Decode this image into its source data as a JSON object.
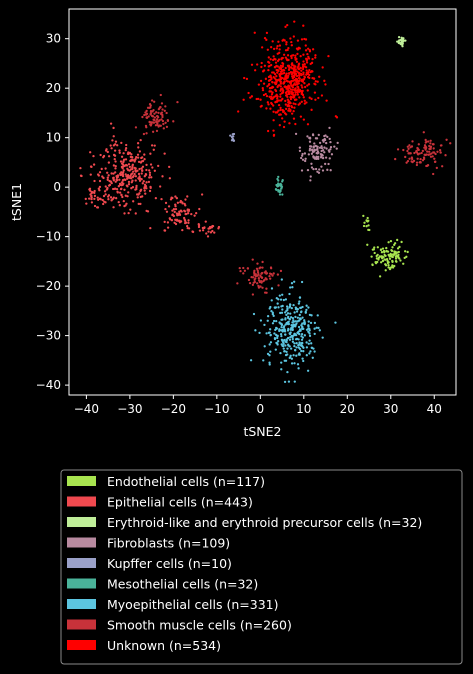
{
  "chart_data": {
    "type": "scatter",
    "title": "",
    "xlabel": "tSNE2",
    "ylabel": "tSNE1",
    "xlim": [
      -44,
      45
    ],
    "ylim": [
      -42,
      36
    ],
    "xticks": [
      -40,
      -30,
      -20,
      -10,
      0,
      10,
      20,
      30,
      40
    ],
    "yticks": [
      -40,
      -30,
      -20,
      -10,
      0,
      10,
      20,
      30
    ],
    "grid": false,
    "legend_position": "below plot",
    "background_color": "#000000",
    "series": [
      {
        "name": "Endothelial cells (n=117)",
        "color": "#a8e44f",
        "n": 117,
        "clusters": [
          {
            "cx": 29.5,
            "cy": -14,
            "sx": 1.8,
            "sy": 1.4,
            "n": 105
          },
          {
            "cx": 24.5,
            "cy": -7.8,
            "sx": 0.5,
            "sy": 0.7,
            "n": 12
          }
        ]
      },
      {
        "name": "Epithelial cells (n=443)",
        "color": "#f0494f",
        "n": 443,
        "clusters": [
          {
            "cx": -30.5,
            "cy": 2.5,
            "sx": 3.8,
            "sy": 3.4,
            "n": 300
          },
          {
            "cx": -18.5,
            "cy": -5,
            "sx": 2.2,
            "sy": 2.0,
            "n": 80
          },
          {
            "cx": -37,
            "cy": -2,
            "sx": 1.6,
            "sy": 1.2,
            "n": 40
          },
          {
            "cx": -12,
            "cy": -8.5,
            "sx": 1.4,
            "sy": 0.6,
            "n": 23
          }
        ]
      },
      {
        "name": "Erythroid-like and erythroid precursor cells (n=32)",
        "color": "#bfee99",
        "n": 32,
        "clusters": [
          {
            "cx": 32.5,
            "cy": 29.5,
            "sx": 0.35,
            "sy": 0.45,
            "n": 32
          }
        ]
      },
      {
        "name": "Fibroblasts (n=109)",
        "color": "#b88aa0",
        "n": 109,
        "clusters": [
          {
            "cx": 13,
            "cy": 7,
            "sx": 1.7,
            "sy": 2.2,
            "n": 109
          }
        ]
      },
      {
        "name": "Kupffer cells (n=10)",
        "color": "#9aa0c8",
        "n": 10,
        "clusters": [
          {
            "cx": -6.3,
            "cy": 10,
            "sx": 0.35,
            "sy": 0.35,
            "n": 10
          }
        ]
      },
      {
        "name": "Mesothelial cells (n=32)",
        "color": "#4ab39a",
        "n": 32,
        "clusters": [
          {
            "cx": 4.5,
            "cy": 0.2,
            "sx": 0.6,
            "sy": 0.9,
            "n": 32
          }
        ]
      },
      {
        "name": "Myoepithelial cells (n=331)",
        "color": "#5cc5e0",
        "n": 331,
        "clusters": [
          {
            "cx": 7,
            "cy": -29,
            "sx": 3.2,
            "sy": 3.6,
            "n": 331
          }
        ]
      },
      {
        "name": "Smooth muscle cells (n=260)",
        "color": "#c8323a",
        "n": 260,
        "clusters": [
          {
            "cx": -24,
            "cy": 14,
            "sx": 1.8,
            "sy": 1.8,
            "n": 85
          },
          {
            "cx": 37.5,
            "cy": 7,
            "sx": 2.2,
            "sy": 1.6,
            "n": 100
          },
          {
            "cx": 0,
            "cy": -18,
            "sx": 1.7,
            "sy": 1.4,
            "n": 75
          }
        ]
      },
      {
        "name": "Unknown (n=534)",
        "color": "#ff0000",
        "n": 534,
        "clusters": [
          {
            "cx": 6.5,
            "cy": 21.5,
            "sx": 3.6,
            "sy": 4.0,
            "n": 534
          }
        ]
      }
    ]
  }
}
